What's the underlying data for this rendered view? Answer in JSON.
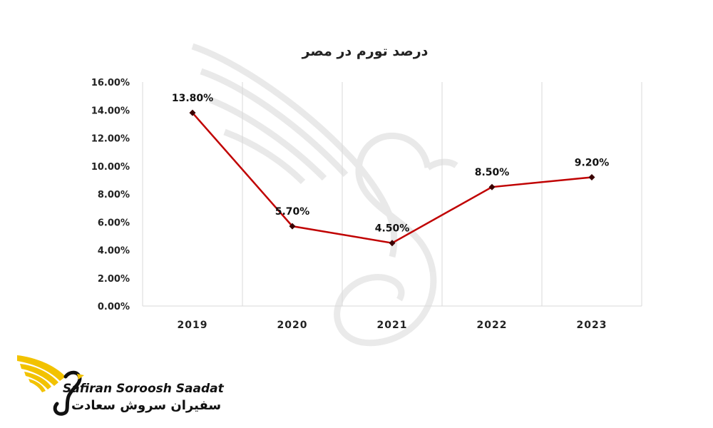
{
  "chart_data": {
    "type": "line",
    "title": "درصد تورم در مصر",
    "categories": [
      "2019",
      "2020",
      "2021",
      "2022",
      "2023"
    ],
    "values": [
      13.8,
      5.7,
      4.5,
      8.5,
      9.2
    ],
    "data_labels": [
      "13.80%",
      "5.70%",
      "4.50%",
      "8.50%",
      "9.20%"
    ],
    "y_ticks": [
      "0.00%",
      "2.00%",
      "4.00%",
      "6.00%",
      "8.00%",
      "10.00%",
      "12.00%",
      "14.00%",
      "16.00%"
    ],
    "ylim": [
      0,
      16
    ],
    "grid": "vertical",
    "line_color": "#c00000",
    "marker_color": "#3a0000"
  },
  "logo": {
    "text_en": "Safiran Soroosh Saadat",
    "text_fa": "سفیران سروش سعادت",
    "accent_color": "#f2c200"
  }
}
